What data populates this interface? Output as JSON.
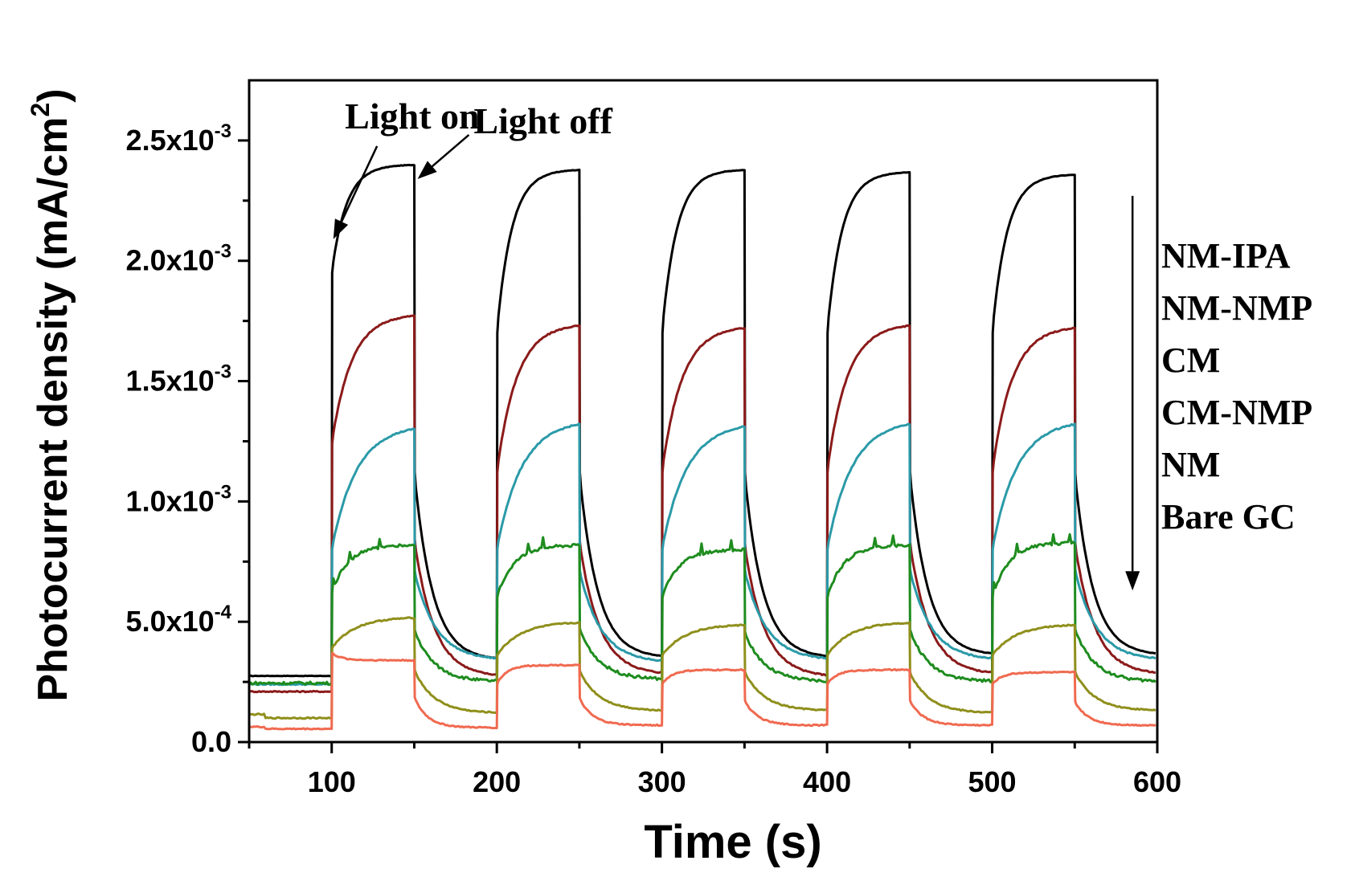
{
  "chart_data": {
    "type": "line",
    "xlabel": "Time (s)",
    "ylabel_main": "Photocurrent density (mA/cm",
    "ylabel_sup": "2",
    "ylabel_close": ")",
    "xlim": [
      50,
      600
    ],
    "ylim": [
      0,
      0.00275
    ],
    "x_ticks": [
      {
        "value": 100,
        "label": "100"
      },
      {
        "value": 200,
        "label": "200"
      },
      {
        "value": 300,
        "label": "300"
      },
      {
        "value": 400,
        "label": "400"
      },
      {
        "value": 500,
        "label": "500"
      },
      {
        "value": 600,
        "label": "600"
      }
    ],
    "y_ticks": [
      {
        "value": 0.0,
        "label": "0.0",
        "sup": ""
      },
      {
        "value": 0.0005,
        "label": "5.0x10",
        "sup": "-4"
      },
      {
        "value": 0.001,
        "label": "1.0x10",
        "sup": "-3"
      },
      {
        "value": 0.0015,
        "label": "1.5x10",
        "sup": "-3"
      },
      {
        "value": 0.002,
        "label": "2.0x10",
        "sup": "-3"
      },
      {
        "value": 0.0025,
        "label": "2.5x10",
        "sup": "-3"
      }
    ],
    "light_on_times": [
      100,
      200,
      300,
      400,
      500
    ],
    "light_off_times": [
      150,
      250,
      350,
      450,
      550
    ],
    "annotations": [
      {
        "text": "Light on",
        "x": 108,
        "y": 0.00255,
        "arrow_to": [
          101,
          0.00209
        ]
      },
      {
        "text": "Light off",
        "x": 186,
        "y": 0.00253,
        "arrow_to": [
          152,
          0.00234
        ]
      }
    ],
    "legend_arrow": {
      "x": 585,
      "y_from": 0.00227,
      "y_to": 0.00063
    },
    "series": [
      {
        "name": "NM-IPA",
        "color": "#000000",
        "dark": 0.000275,
        "spike": 0.00195,
        "plateau": [
          0.0024,
          0.00238,
          0.00238,
          0.00237,
          0.00236
        ],
        "tau_on": 9,
        "dark_end": [
          0.00034,
          0.00035,
          0.00035,
          0.00036,
          0.00036
        ],
        "tau_off": 11,
        "ramp_start": 0.0017,
        "jump_drop": 0.0
      },
      {
        "name": "NM-NMP",
        "color": "#8b1a1a",
        "dark": 0.00021,
        "spike": 0.00124,
        "plateau": [
          0.00178,
          0.00174,
          0.00173,
          0.00174,
          0.00173
        ],
        "tau_on": 12,
        "dark_end": [
          0.00027,
          0.00028,
          0.00027,
          0.00028,
          0.00028
        ],
        "tau_off": 12,
        "ramp_start": 0.00112,
        "jump_drop": 0.0
      },
      {
        "name": "CM",
        "color": "#2b9aa8",
        "dark": 0.00024,
        "spike": 0.0008,
        "plateau": [
          0.00132,
          0.00134,
          0.00133,
          0.00134,
          0.00134
        ],
        "tau_on": 15,
        "dark_end": [
          0.00034,
          0.00033,
          0.00034,
          0.00034,
          0.00034
        ],
        "tau_off": 13,
        "ramp_start": 0.0008,
        "jump_drop": 0.0
      },
      {
        "name": "CM-NMP",
        "color": "#1e8c1e",
        "dark": 0.000245,
        "spike": 0.00062,
        "plateau": [
          0.00082,
          0.00082,
          0.0008,
          0.00082,
          0.00083
        ],
        "tau_on": 10,
        "dark_end": [
          0.00025,
          0.00026,
          0.00025,
          0.00025,
          0.00025
        ],
        "tau_off": 12,
        "ramp_start": 0.0006,
        "jump_drop": 0.0
      },
      {
        "name": "NM",
        "color": "#8f8f1c",
        "dark": 0.0001,
        "spike": 0.00039,
        "plateau": [
          0.00052,
          0.0005,
          0.00049,
          0.0005,
          0.00049
        ],
        "tau_on": 14,
        "dark_end": [
          0.00012,
          0.00013,
          0.00013,
          0.00012,
          0.00013
        ],
        "tau_off": 12,
        "ramp_start": 0.00036,
        "jump_drop": 0.00018
      },
      {
        "name": "Bare GC",
        "color": "#f06a50",
        "dark": 5.5e-05,
        "spike": 0.00037,
        "plateau": [
          0.00034,
          0.00032,
          0.0003,
          0.0003,
          0.00029
        ],
        "tau_on": 8,
        "dark_end": [
          6e-05,
          7e-05,
          7e-05,
          7e-05,
          7e-05
        ],
        "tau_off": 8,
        "ramp_start": 0.00024,
        "jump_drop": 0.00015
      }
    ]
  }
}
